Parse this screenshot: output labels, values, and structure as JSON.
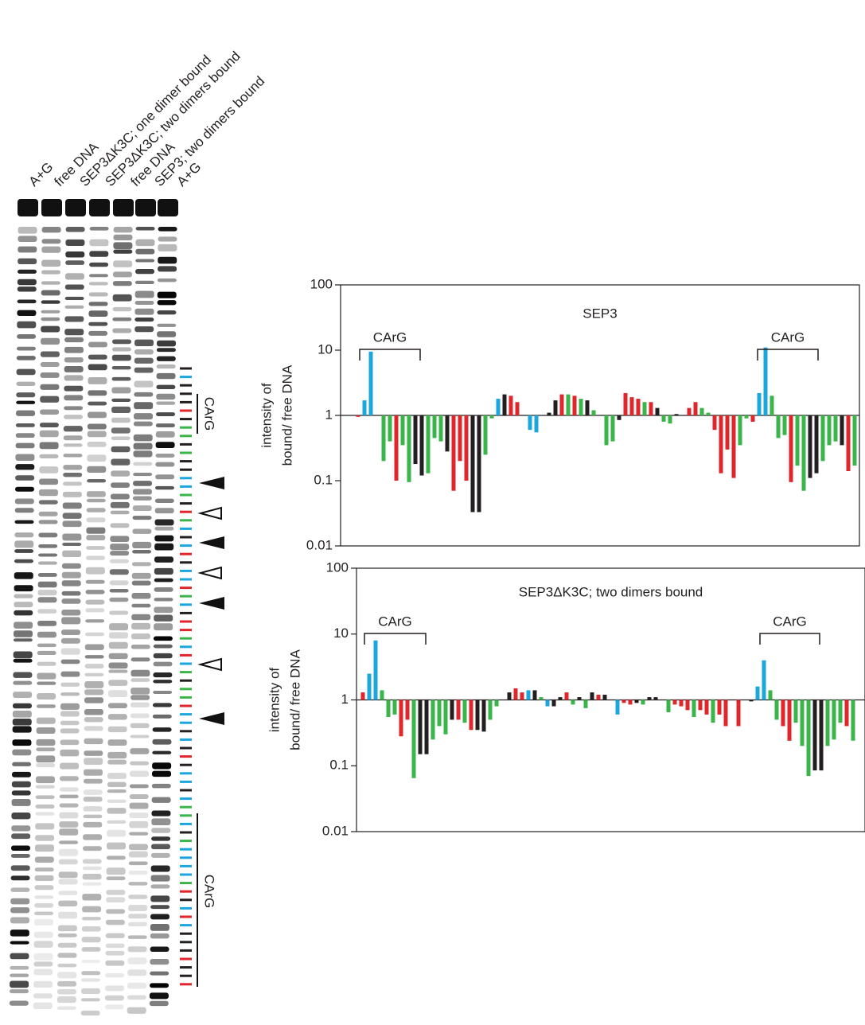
{
  "gel": {
    "lane_labels": [
      "A+G",
      "free DNA",
      "SEP3ΔK3C; one dimer bound",
      "SEP3ΔK3C; two dimers bound",
      "free DNA",
      "SEP3; two dimers bound",
      "A+G"
    ],
    "annotations": [
      "CArG",
      "CArG"
    ]
  },
  "chart_data": [
    {
      "type": "bar",
      "title": "SEP3",
      "ylabel": [
        "intensity of",
        "bound/ free DNA"
      ],
      "log_scale": true,
      "ylim": [
        0.01,
        100
      ],
      "yticks": [
        0.01,
        0.1,
        1,
        10,
        100
      ],
      "baseline": 1,
      "annotations": [
        "CArG",
        "CArG"
      ],
      "values": [
        0.95,
        1.7,
        9.5,
        null,
        0.2,
        0.4,
        0.1,
        0.35,
        0.095,
        0.18,
        0.12,
        0.13,
        0.45,
        0.4,
        0.28,
        0.07,
        0.2,
        0.1,
        0.033,
        0.033,
        0.25,
        0.9,
        1.8,
        2.1,
        2.0,
        1.6,
        null,
        0.6,
        0.55,
        null,
        1.1,
        1.7,
        2.1,
        2.1,
        2.0,
        1.8,
        1.7,
        1.2,
        null,
        0.35,
        0.4,
        0.85,
        2.2,
        1.9,
        1.8,
        1.6,
        1.6,
        1.3,
        0.8,
        0.75,
        1.05,
        null,
        1.3,
        1.6,
        1.3,
        1.1,
        0.6,
        0.13,
        0.3,
        0.11,
        0.35,
        0.9,
        0.8,
        2.2,
        11,
        2.0,
        0.45,
        0.5,
        0.095,
        0.17,
        0.07,
        0.11,
        0.13,
        0.2,
        0.35,
        0.4,
        0.35,
        0.14,
        0.17
      ],
      "colors": [
        "#e0262b",
        "#1ba6de",
        "#1ba6de",
        null,
        "#3ab54a",
        "#3ab54a",
        "#e0262b",
        "#3ab54a",
        "#3ab54a",
        "#231f20",
        "#231f20",
        "#3ab54a",
        "#3ab54a",
        "#3ab54a",
        "#231f20",
        "#e0262b",
        "#e0262b",
        "#e0262b",
        "#231f20",
        "#231f20",
        "#3ab54a",
        "#3ab54a",
        "#1ba6de",
        "#231f20",
        "#e0262b",
        "#e0262b",
        null,
        "#1ba6de",
        "#1ba6de",
        null,
        "#231f20",
        "#231f20",
        "#e0262b",
        "#3ab54a",
        "#e0262b",
        "#3ab54a",
        "#231f20",
        "#3ab54a",
        null,
        "#3ab54a",
        "#3ab54a",
        "#231f20",
        "#e0262b",
        "#e0262b",
        "#e0262b",
        "#3ab54a",
        "#e0262b",
        "#231f20",
        "#3ab54a",
        "#3ab54a",
        "#231f20",
        null,
        "#e0262b",
        "#e0262b",
        "#3ab54a",
        "#3ab54a",
        "#e0262b",
        "#e0262b",
        "#e0262b",
        "#e0262b",
        "#3ab54a",
        "#3ab54a",
        "#e0262b",
        "#1ba6de",
        "#1ba6de",
        "#3ab54a",
        "#3ab54a",
        "#3ab54a",
        "#e0262b",
        "#3ab54a",
        "#3ab54a",
        "#231f20",
        "#231f20",
        "#3ab54a",
        "#3ab54a",
        "#3ab54a",
        "#231f20",
        "#e0262b",
        "#3ab54a"
      ]
    },
    {
      "type": "bar",
      "title": "SEP3ΔK3C; two dimers bound",
      "ylabel": [
        "intensity of",
        "bound/ free DNA"
      ],
      "log_scale": true,
      "ylim": [
        0.01,
        100
      ],
      "yticks": [
        0.01,
        0.1,
        1,
        10,
        100
      ],
      "baseline": 1,
      "annotations": [
        "CArG",
        "CArG"
      ],
      "values": [
        1.3,
        2.5,
        8,
        1.4,
        0.55,
        0.6,
        0.28,
        0.5,
        0.065,
        0.15,
        0.15,
        0.25,
        0.4,
        0.3,
        0.5,
        0.5,
        0.45,
        0.35,
        0.35,
        0.33,
        0.5,
        0.8,
        null,
        1.3,
        1.5,
        1.3,
        1.4,
        1.4,
        1.1,
        0.8,
        0.8,
        1.1,
        1.3,
        0.85,
        1.1,
        0.75,
        1.3,
        1.2,
        1.2,
        null,
        0.6,
        0.9,
        0.85,
        0.9,
        0.85,
        1.1,
        1.1,
        null,
        0.65,
        0.85,
        0.8,
        0.7,
        0.55,
        0.7,
        0.6,
        0.45,
        0.6,
        0.4,
        null,
        0.4,
        null,
        0.95,
        1.6,
        4,
        1.4,
        0.5,
        0.4,
        0.24,
        0.45,
        0.2,
        0.07,
        0.085,
        0.085,
        0.2,
        0.25,
        0.45,
        0.4,
        0.24,
        null
      ],
      "colors": [
        "#e0262b",
        "#1ba6de",
        "#1ba6de",
        "#3ab54a",
        "#3ab54a",
        "#3ab54a",
        "#e0262b",
        "#e0262b",
        "#3ab54a",
        "#231f20",
        "#231f20",
        "#3ab54a",
        "#3ab54a",
        "#3ab54a",
        "#231f20",
        "#e0262b",
        "#3ab54a",
        "#e0262b",
        "#231f20",
        "#231f20",
        "#3ab54a",
        "#3ab54a",
        null,
        "#231f20",
        "#e0262b",
        "#e0262b",
        "#1ba6de",
        "#231f20",
        "#3ab54a",
        "#1ba6de",
        "#231f20",
        "#231f20",
        "#e0262b",
        "#3ab54a",
        "#231f20",
        "#3ab54a",
        "#231f20",
        "#e0262b",
        "#231f20",
        null,
        "#1ba6de",
        "#e0262b",
        "#e0262b",
        "#231f20",
        "#3ab54a",
        "#231f20",
        "#231f20",
        null,
        "#3ab54a",
        "#e0262b",
        "#e0262b",
        "#e0262b",
        "#3ab54a",
        "#e0262b",
        "#e0262b",
        "#3ab54a",
        "#e0262b",
        "#e0262b",
        null,
        "#e0262b",
        null,
        "#231f20",
        "#1ba6de",
        "#1ba6de",
        "#3ab54a",
        "#3ab54a",
        "#e0262b",
        "#e0262b",
        "#3ab54a",
        "#3ab54a",
        "#3ab54a",
        "#231f20",
        "#231f20",
        "#3ab54a",
        "#3ab54a",
        "#3ab54a",
        "#e0262b",
        "#3ab54a",
        null
      ]
    }
  ]
}
